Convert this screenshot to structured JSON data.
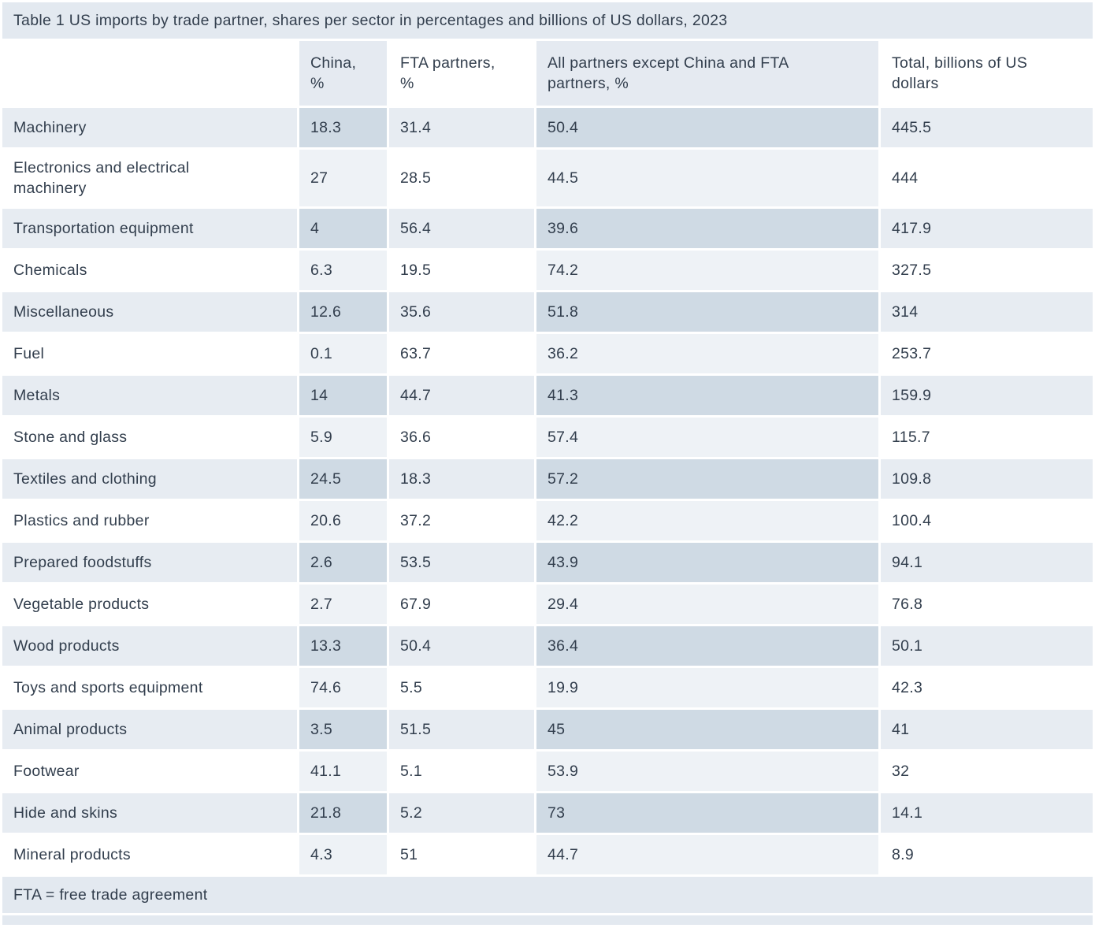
{
  "table": {
    "title": "Table 1 US imports by trade partner, shares per sector in percentages and billions of US dollars, 2023",
    "columns": [
      "",
      "China,\n%",
      "FTA partners,\n%",
      "All partners except China and FTA\npartners, %",
      "Total, billions of US\ndollars"
    ],
    "rows": [
      {
        "sector": "Machinery",
        "china": "18.3",
        "fta": "31.4",
        "all_except": "50.4",
        "total": "445.5"
      },
      {
        "sector": "Electronics and electrical\nmachinery",
        "china": "27",
        "fta": "28.5",
        "all_except": "44.5",
        "total": "444"
      },
      {
        "sector": "Transportation equipment",
        "china": "4",
        "fta": "56.4",
        "all_except": "39.6",
        "total": "417.9"
      },
      {
        "sector": "Chemicals",
        "china": "6.3",
        "fta": "19.5",
        "all_except": "74.2",
        "total": "327.5"
      },
      {
        "sector": "Miscellaneous",
        "china": "12.6",
        "fta": "35.6",
        "all_except": "51.8",
        "total": "314"
      },
      {
        "sector": "Fuel",
        "china": "0.1",
        "fta": "63.7",
        "all_except": "36.2",
        "total": "253.7"
      },
      {
        "sector": "Metals",
        "china": "14",
        "fta": "44.7",
        "all_except": "41.3",
        "total": "159.9"
      },
      {
        "sector": "Stone and glass",
        "china": "5.9",
        "fta": "36.6",
        "all_except": "57.4",
        "total": "115.7"
      },
      {
        "sector": "Textiles and clothing",
        "china": "24.5",
        "fta": "18.3",
        "all_except": "57.2",
        "total": "109.8"
      },
      {
        "sector": "Plastics and rubber",
        "china": "20.6",
        "fta": "37.2",
        "all_except": "42.2",
        "total": "100.4"
      },
      {
        "sector": "Prepared foodstuffs",
        "china": "2.6",
        "fta": "53.5",
        "all_except": "43.9",
        "total": "94.1"
      },
      {
        "sector": "Vegetable products",
        "china": "2.7",
        "fta": "67.9",
        "all_except": "29.4",
        "total": "76.8"
      },
      {
        "sector": "Wood products",
        "china": "13.3",
        "fta": "50.4",
        "all_except": "36.4",
        "total": "50.1"
      },
      {
        "sector": "Toys and sports equipment",
        "china": "74.6",
        "fta": "5.5",
        "all_except": "19.9",
        "total": "42.3"
      },
      {
        "sector": "Animal products",
        "china": "3.5",
        "fta": "51.5",
        "all_except": "45",
        "total": "41"
      },
      {
        "sector": "Footwear",
        "china": "41.1",
        "fta": "5.1",
        "all_except": "53.9",
        "total": "32"
      },
      {
        "sector": "Hide and skins",
        "china": "21.8",
        "fta": "5.2",
        "all_except": "73",
        "total": "14.1"
      },
      {
        "sector": "Mineral products",
        "china": "4.3",
        "fta": "51",
        "all_except": "44.7",
        "total": "8.9"
      }
    ],
    "footnote": "FTA = free trade agreement"
  },
  "colors": {
    "title_bar_bg": "#e3e9f0",
    "header_tint_bg": "#e5eaf1",
    "row_blue_bg": "#e7ecf2",
    "row_blue_tint_bg": "#cfdae4",
    "row_white_bg": "#ffffff",
    "row_white_tint_bg": "#eef2f6",
    "text": "#323e4d"
  }
}
